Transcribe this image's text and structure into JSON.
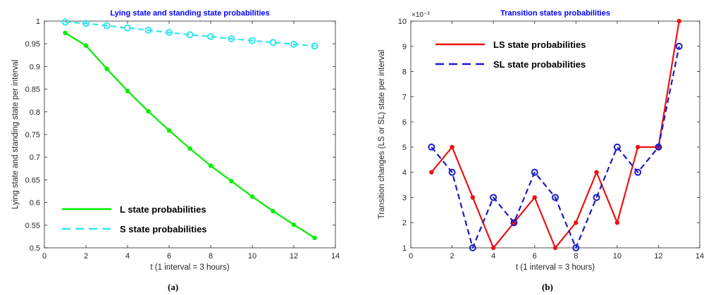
{
  "panels": [
    {
      "caption": "(a)",
      "chart_data": {
        "type": "line",
        "title": "Lying state and standing state probabilities",
        "xlabel": "t (1 interval = 3 hours)",
        "ylabel": "Lying state and standing state per interval",
        "xlim": [
          0,
          14
        ],
        "ylim": [
          0.5,
          1
        ],
        "xticks": [
          0,
          2,
          4,
          6,
          8,
          10,
          12,
          14
        ],
        "yticks": [
          0.5,
          0.55,
          0.6,
          0.65,
          0.7,
          0.75,
          0.8,
          0.85,
          0.9,
          0.95,
          1
        ],
        "ytick_labels": [
          "0.5",
          "0.55",
          "0.6",
          "0.65",
          "0.7",
          "0.75",
          "0.8",
          "0.85",
          "0.9",
          "0.95",
          "1"
        ],
        "exponent_label": "",
        "grid": false,
        "legend_position": "bottom-left",
        "x": [
          1,
          2,
          3,
          4,
          5,
          6,
          7,
          8,
          9,
          10,
          11,
          12,
          13
        ],
        "series": [
          {
            "name": "L state probabilities",
            "color": "#00ee00",
            "dash": "solid",
            "marker": "dot",
            "values": [
              0.974,
              0.946,
              0.895,
              0.846,
              0.801,
              0.759,
              0.719,
              0.681,
              0.647,
              0.613,
              0.581,
              0.551,
              0.522
            ]
          },
          {
            "name": "S state probabilities",
            "color": "#33e6f0",
            "dash": "dashed",
            "marker": "circle",
            "values": [
              0.998,
              0.995,
              0.99,
              0.985,
              0.98,
              0.975,
              0.97,
              0.966,
              0.961,
              0.957,
              0.953,
              0.949,
              0.945
            ]
          }
        ]
      }
    },
    {
      "caption": "(b)",
      "chart_data": {
        "type": "line",
        "title": "Transition states probabilities",
        "xlabel": "t (1 interval = 3 hours)",
        "ylabel": "Transition changes (LS or SL) state per interval",
        "xlim": [
          0,
          14
        ],
        "ylim": [
          1,
          10
        ],
        "xticks": [
          0,
          2,
          4,
          6,
          8,
          10,
          12,
          14
        ],
        "yticks": [
          1,
          2,
          3,
          4,
          5,
          6,
          7,
          8,
          9,
          10
        ],
        "ytick_labels": [
          "1",
          "2",
          "3",
          "4",
          "5",
          "6",
          "7",
          "8",
          "9",
          "10"
        ],
        "exponent_label": "×10⁻³",
        "grid": false,
        "legend_position": "top-left",
        "x": [
          1,
          2,
          3,
          4,
          5,
          6,
          7,
          8,
          9,
          10,
          11,
          12,
          13
        ],
        "series": [
          {
            "name": "LS state probabilities",
            "color": "#ee1111",
            "dash": "solid",
            "marker": "dot",
            "values": [
              4,
              5,
              3,
              1,
              2,
              3,
              1,
              2,
              4,
              2,
              5,
              5,
              10
            ]
          },
          {
            "name": "SL state probabilities",
            "color": "#1a1acc",
            "dash": "dashed",
            "marker": "circle",
            "values": [
              5,
              4,
              1,
              3,
              2,
              4,
              3,
              1,
              3,
              5,
              4,
              5,
              9
            ]
          }
        ]
      }
    }
  ]
}
